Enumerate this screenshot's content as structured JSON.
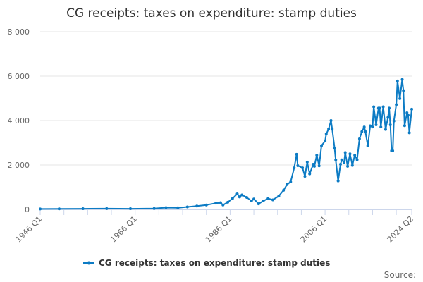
{
  "chart_data": {
    "type": "line",
    "title": "CG receipts: taxes on expenditure: stamp duties",
    "xlabel": "",
    "ylabel": "",
    "ylim": [
      0,
      8000
    ],
    "yticks": [
      0,
      2000,
      4000,
      6000,
      8000
    ],
    "ytick_labels": [
      "0",
      "2 000",
      "4 000",
      "6 000",
      "8 000"
    ],
    "xlim": [
      "1946 Q1",
      "2024 Q2"
    ],
    "xtick_labels": [
      "1946 Q1",
      "1966 Q1",
      "1986 Q1",
      "2006 Q1",
      "2024 Q2"
    ],
    "grid": true,
    "legend_position": "bottom",
    "color": "#0c7bc4",
    "series": [
      {
        "name": "CG receipts: taxes on expenditure: stamp duties",
        "points": [
          [
            "1946 Q1",
            20
          ],
          [
            "1950 Q1",
            25
          ],
          [
            "1955 Q1",
            30
          ],
          [
            "1960 Q1",
            35
          ],
          [
            "1965 Q1",
            30
          ],
          [
            "1970 Q1",
            40
          ],
          [
            "1972 Q3",
            80
          ],
          [
            "1975 Q1",
            70
          ],
          [
            "1977 Q1",
            110
          ],
          [
            "1979 Q1",
            150
          ],
          [
            "1981 Q1",
            200
          ],
          [
            "1983 Q1",
            280
          ],
          [
            "1984 Q1",
            300
          ],
          [
            "1984 Q3",
            200
          ],
          [
            "1985 Q3",
            320
          ],
          [
            "1986 Q3",
            490
          ],
          [
            "1987 Q3",
            700
          ],
          [
            "1988 Q1",
            560
          ],
          [
            "1988 Q3",
            650
          ],
          [
            "1989 Q3",
            540
          ],
          [
            "1990 Q3",
            380
          ],
          [
            "1991 Q1",
            470
          ],
          [
            "1992 Q1",
            250
          ],
          [
            "1993 Q1",
            380
          ],
          [
            "1994 Q1",
            490
          ],
          [
            "1995 Q1",
            430
          ],
          [
            "1996 Q2",
            600
          ],
          [
            "1997 Q2",
            860
          ],
          [
            "1998 Q1",
            1120
          ],
          [
            "1998 Q4",
            1240
          ],
          [
            "1999 Q3",
            1870
          ],
          [
            "2000 Q1",
            2480
          ],
          [
            "2000 Q2",
            1970
          ],
          [
            "2001 Q2",
            1870
          ],
          [
            "2001 Q4",
            1490
          ],
          [
            "2002 Q2",
            2130
          ],
          [
            "2002 Q4",
            1600
          ],
          [
            "2003 Q3",
            2030
          ],
          [
            "2003 Q4",
            1940
          ],
          [
            "2004 Q2",
            2440
          ],
          [
            "2004 Q4",
            1960
          ],
          [
            "2005 Q2",
            2870
          ],
          [
            "2006 Q1",
            3080
          ],
          [
            "2006 Q2",
            3400
          ],
          [
            "2006 Q4",
            3620
          ],
          [
            "2007 Q2",
            4000
          ],
          [
            "2007 Q3",
            3620
          ],
          [
            "2008 Q1",
            2760
          ],
          [
            "2008 Q2",
            2230
          ],
          [
            "2008 Q4",
            1280
          ],
          [
            "2009 Q2",
            2030
          ],
          [
            "2009 Q3",
            2230
          ],
          [
            "2010 Q1",
            2100
          ],
          [
            "2010 Q2",
            2560
          ],
          [
            "2010 Q4",
            1940
          ],
          [
            "2011 Q2",
            2500
          ],
          [
            "2011 Q4",
            1980
          ],
          [
            "2012 Q2",
            2440
          ],
          [
            "2012 Q4",
            2240
          ],
          [
            "2013 Q2",
            3180
          ],
          [
            "2013 Q4",
            3500
          ],
          [
            "2014 Q2",
            3710
          ],
          [
            "2014 Q3",
            3500
          ],
          [
            "2015 Q1",
            2860
          ],
          [
            "2015 Q3",
            3760
          ],
          [
            "2016 Q1",
            3710
          ],
          [
            "2016 Q2",
            4620
          ],
          [
            "2016 Q4",
            3810
          ],
          [
            "2017 Q2",
            4560
          ],
          [
            "2017 Q3",
            4560
          ],
          [
            "2017 Q4",
            3710
          ],
          [
            "2018 Q2",
            4620
          ],
          [
            "2018 Q4",
            3600
          ],
          [
            "2019 Q2",
            4140
          ],
          [
            "2019 Q3",
            4560
          ],
          [
            "2019 Q4",
            3810
          ],
          [
            "2020 Q1",
            2640
          ],
          [
            "2020 Q2",
            2640
          ],
          [
            "2020 Q3",
            3980
          ],
          [
            "2021 Q1",
            4720
          ],
          [
            "2021 Q2",
            5780
          ],
          [
            "2021 Q4",
            4990
          ],
          [
            "2022 Q2",
            5850
          ],
          [
            "2022 Q3",
            5350
          ],
          [
            "2022 Q4",
            3770
          ],
          [
            "2023 Q2",
            4350
          ],
          [
            "2023 Q3",
            4240
          ],
          [
            "2023 Q4",
            3450
          ],
          [
            "2024 Q2",
            4510
          ]
        ]
      }
    ],
    "source_label": "Source:"
  }
}
